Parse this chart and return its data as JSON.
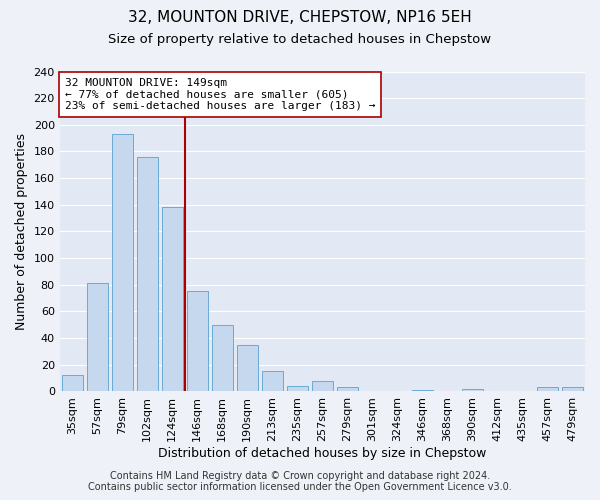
{
  "title": "32, MOUNTON DRIVE, CHEPSTOW, NP16 5EH",
  "subtitle": "Size of property relative to detached houses in Chepstow",
  "xlabel": "Distribution of detached houses by size in Chepstow",
  "ylabel": "Number of detached properties",
  "bar_labels": [
    "35sqm",
    "57sqm",
    "79sqm",
    "102sqm",
    "124sqm",
    "146sqm",
    "168sqm",
    "190sqm",
    "213sqm",
    "235sqm",
    "257sqm",
    "279sqm",
    "301sqm",
    "324sqm",
    "346sqm",
    "368sqm",
    "390sqm",
    "412sqm",
    "435sqm",
    "457sqm",
    "479sqm"
  ],
  "bar_values": [
    12,
    81,
    193,
    176,
    138,
    75,
    50,
    35,
    15,
    4,
    8,
    3,
    0,
    0,
    1,
    0,
    2,
    0,
    0,
    3,
    3
  ],
  "bar_color": "#c5d8ee",
  "bar_edge_color": "#6aaad4",
  "ylim": [
    0,
    240
  ],
  "yticks": [
    0,
    20,
    40,
    60,
    80,
    100,
    120,
    140,
    160,
    180,
    200,
    220,
    240
  ],
  "property_line_idx": 5,
  "property_line_color": "#aa0000",
  "annotation_title": "32 MOUNTON DRIVE: 149sqm",
  "annotation_line1": "← 77% of detached houses are smaller (605)",
  "annotation_line2": "23% of semi-detached houses are larger (183) →",
  "annotation_box_color": "#ffffff",
  "annotation_box_edge": "#aa0000",
  "footer_line1": "Contains HM Land Registry data © Crown copyright and database right 2024.",
  "footer_line2": "Contains public sector information licensed under the Open Government Licence v3.0.",
  "background_color": "#eef2f8",
  "plot_bg_color": "#e2e9f4",
  "grid_color": "#ffffff",
  "title_fontsize": 11,
  "subtitle_fontsize": 9.5,
  "axis_label_fontsize": 9,
  "tick_fontsize": 8,
  "annotation_fontsize": 8,
  "footer_fontsize": 7
}
